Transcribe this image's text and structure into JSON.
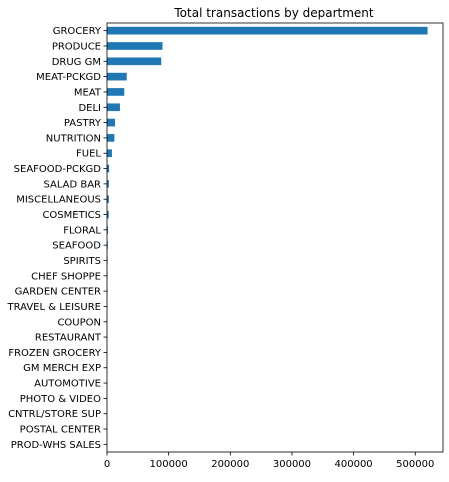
{
  "chart_data": {
    "type": "bar",
    "orientation": "horizontal",
    "title": "Total transactions by department",
    "xlabel": "",
    "ylabel": "",
    "xlim": [
      0,
      545000
    ],
    "xticks": [
      0,
      100000,
      200000,
      300000,
      400000,
      500000
    ],
    "xtick_labels": [
      "0",
      "100000",
      "200000",
      "300000",
      "400000",
      "500000"
    ],
    "grid": false,
    "bar_color": "#1f77b4",
    "categories": [
      "GROCERY",
      "PRODUCE",
      "DRUG GM",
      "MEAT-PCKGD",
      "MEAT",
      "DELI",
      "PASTRY",
      "NUTRITION",
      "FUEL",
      "SEAFOOD-PCKGD",
      "SALAD BAR",
      "MISCELLANEOUS",
      "COSMETICS",
      "FLORAL",
      "SEAFOOD",
      "SPIRITS",
      "CHEF SHOPPE",
      "GARDEN CENTER",
      "TRAVEL & LEISURE",
      "COUPON",
      "RESTAURANT",
      "FROZEN GROCERY",
      "GM MERCH EXP",
      "AUTOMOTIVE",
      "PHOTO & VIDEO",
      "CNTRL/STORE SUP",
      "POSTAL CENTER",
      "PROD-WHS SALES"
    ],
    "values": [
      520000,
      90000,
      88000,
      32000,
      28000,
      21000,
      13000,
      12000,
      8000,
      3500,
      3000,
      3000,
      2800,
      1500,
      1300,
      1000,
      700,
      600,
      500,
      450,
      400,
      300,
      200,
      150,
      100,
      50,
      30,
      10
    ]
  }
}
